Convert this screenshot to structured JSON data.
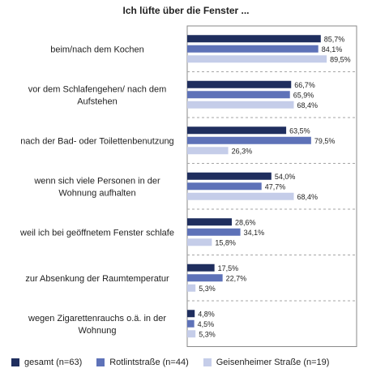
{
  "chart_data": {
    "type": "bar",
    "orientation": "horizontal",
    "title": "Ich lüfte über die Fenster ...",
    "categories": [
      "beim/nach dem Kochen",
      "vor dem Schlafengehen/ nach dem Aufstehen",
      "nach der Bad- oder Toilettenbenutzung",
      "wenn sich viele Personen in der Wohnung aufhalten",
      "weil ich bei geöffnetem Fenster schlafe",
      "zur Absenkung der Raumtemperatur",
      "wegen Zigarettenrauchs o.ä. in der Wohnung"
    ],
    "category_lines": [
      [
        "beim/nach dem Kochen"
      ],
      [
        "vor dem Schlafengehen/ nach dem",
        "Aufstehen"
      ],
      [
        "nach der Bad- oder Toilettenbenutzung"
      ],
      [
        "wenn sich viele Personen in der",
        "Wohnung aufhalten"
      ],
      [
        "weil ich bei geöffnetem Fenster schlafe"
      ],
      [
        "zur Absenkung der Raumtemperatur"
      ],
      [
        "wegen Zigarettenrauchs o.ä. in der",
        "Wohnung"
      ]
    ],
    "series": [
      {
        "name": "gesamt (n=63)",
        "color": "#1f2e5e",
        "values": [
          85.7,
          66.7,
          63.5,
          54.0,
          28.6,
          17.5,
          4.8
        ],
        "labels": [
          "85,7%",
          "66,7%",
          "63,5%",
          "54,0%",
          "28,6%",
          "17,5%",
          "4,8%"
        ]
      },
      {
        "name": "Rotlintstraße (n=44)",
        "color": "#5e72b8",
        "values": [
          84.1,
          65.9,
          79.5,
          47.7,
          34.1,
          22.7,
          4.5
        ],
        "labels": [
          "84,1%",
          "65,9%",
          "79,5%",
          "47,7%",
          "34,1%",
          "22,7%",
          "4,5%"
        ]
      },
      {
        "name": "Geisenheimer Straße (n=19)",
        "color": "#c5cde9",
        "values": [
          89.5,
          68.4,
          26.3,
          68.4,
          15.8,
          5.3,
          5.3
        ],
        "labels": [
          "89,5%",
          "68,4%",
          "26,3%",
          "68,4%",
          "15,8%",
          "5,3%",
          "5,3%"
        ]
      }
    ],
    "xlim": [
      0,
      100
    ],
    "grid": false,
    "legend_position": "bottom"
  }
}
